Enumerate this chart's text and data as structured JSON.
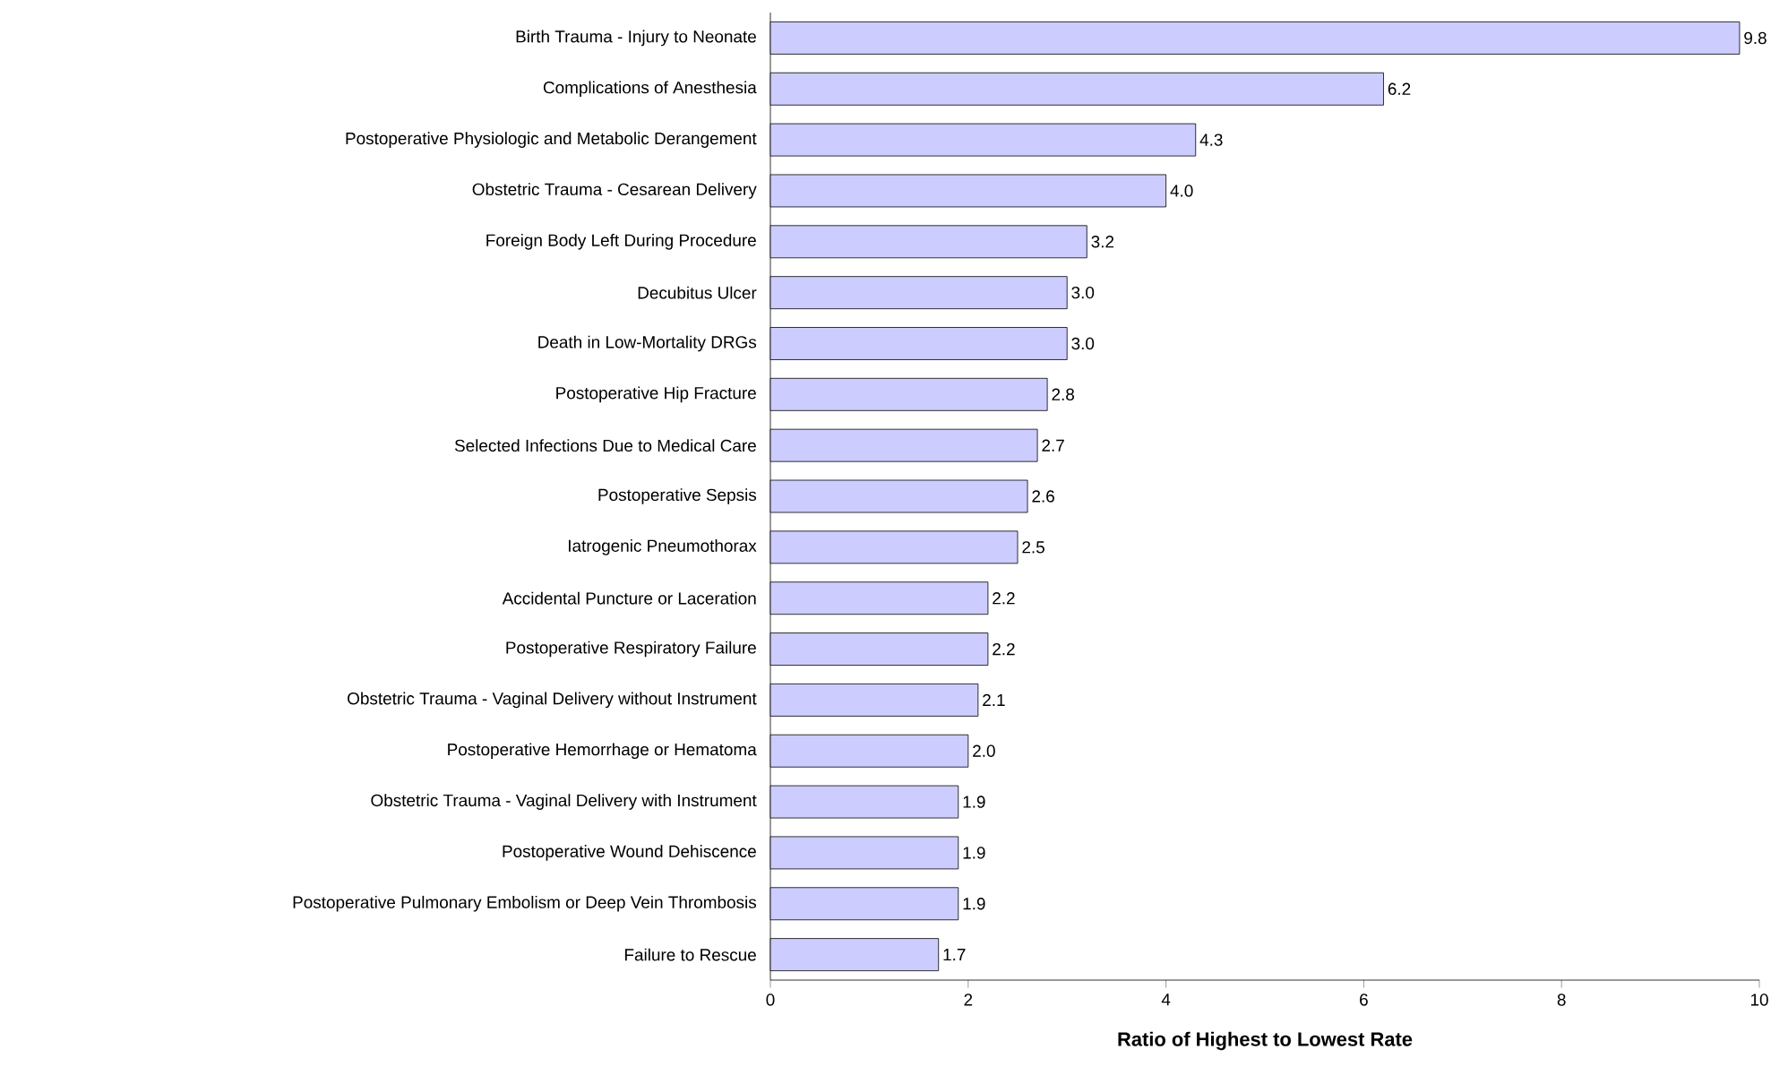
{
  "chart_data": {
    "type": "bar",
    "orientation": "horizontal",
    "xlabel": "Ratio of Highest to Lowest Rate",
    "categories": [
      "Birth Trauma - Injury to Neonate",
      "Complications of Anesthesia",
      "Postoperative Physiologic and Metabolic Derangement",
      "Obstetric Trauma - Cesarean Delivery",
      "Foreign Body Left During Procedure",
      "Decubitus Ulcer",
      "Death in Low-Mortality DRGs",
      "Postoperative Hip Fracture",
      "Selected Infections Due to Medical Care",
      "Postoperative Sepsis",
      "Iatrogenic Pneumothorax",
      "Accidental Puncture or Laceration",
      "Postoperative Respiratory Failure",
      "Obstetric Trauma - Vaginal Delivery without Instrument",
      "Postoperative Hemorrhage or Hematoma",
      "Obstetric Trauma - Vaginal Delivery with Instrument",
      "Postoperative Wound Dehiscence",
      "Postoperative Pulmonary Embolism or Deep Vein Thrombosis",
      "Failure to Rescue"
    ],
    "values": [
      9.8,
      6.2,
      4.3,
      4.0,
      3.2,
      3.0,
      3.0,
      2.8,
      2.7,
      2.6,
      2.5,
      2.2,
      2.2,
      2.1,
      2.0,
      1.9,
      1.9,
      1.9,
      1.7
    ],
    "value_labels": [
      "9.8",
      "6.2",
      "4.3",
      "4.0",
      "3.2",
      "3.0",
      "3.0",
      "2.8",
      "2.7",
      "2.6",
      "2.5",
      "2.2",
      "2.2",
      "2.1",
      "2.0",
      "1.9",
      "1.9",
      "1.9",
      "1.7"
    ],
    "color": "#ccccff",
    "xlim": [
      0,
      10
    ],
    "xticks": [
      0,
      2,
      4,
      6,
      8,
      10
    ],
    "grid": false
  }
}
